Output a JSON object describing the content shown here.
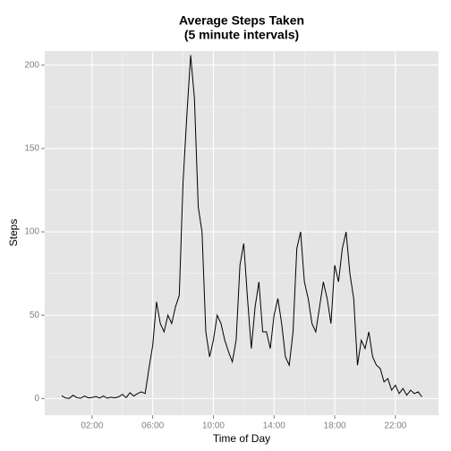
{
  "chart_data": {
    "type": "line",
    "title": "Average Steps Taken",
    "subtitle": "(5 minute intervals)",
    "x_label": "Time of Day",
    "y_label": "Steps",
    "x": [
      0,
      0.25,
      0.5,
      0.75,
      1,
      1.25,
      1.5,
      1.75,
      2,
      2.25,
      2.5,
      2.75,
      3,
      3.25,
      3.5,
      3.75,
      4,
      4.25,
      4.5,
      4.75,
      5,
      5.25,
      5.5,
      5.75,
      6,
      6.25,
      6.5,
      6.75,
      7,
      7.25,
      7.5,
      7.75,
      8,
      8.25,
      8.5,
      8.75,
      9,
      9.25,
      9.5,
      9.75,
      10,
      10.25,
      10.5,
      10.75,
      11,
      11.25,
      11.5,
      11.75,
      12,
      12.25,
      12.5,
      12.75,
      13,
      13.25,
      13.5,
      13.75,
      14,
      14.25,
      14.5,
      14.75,
      15,
      15.25,
      15.5,
      15.75,
      16,
      16.25,
      16.5,
      16.75,
      17,
      17.25,
      17.5,
      17.75,
      18,
      18.25,
      18.5,
      18.75,
      19,
      19.25,
      19.5,
      19.75,
      20,
      20.25,
      20.5,
      20.75,
      21,
      21.25,
      21.5,
      21.75,
      22,
      22.25,
      22.5,
      22.75,
      23,
      23.25,
      23.5,
      23.75
    ],
    "series": [
      {
        "name": "Steps",
        "color": "#000000",
        "values": [
          1.7,
          0.3,
          0.1,
          2,
          0.5,
          0.2,
          1.5,
          0.4,
          0.6,
          1.2,
          0.3,
          1.5,
          0.2,
          0.8,
          0.4,
          1,
          2.5,
          0.5,
          3.5,
          1.5,
          3,
          4,
          3,
          18,
          32,
          58,
          45,
          40,
          50,
          45,
          55,
          62,
          130,
          170,
          206,
          180,
          115,
          100,
          40,
          25,
          35,
          50,
          45,
          35,
          28,
          22,
          35,
          80,
          93,
          60,
          30,
          55,
          70,
          40,
          40,
          30,
          50,
          60,
          45,
          25,
          20,
          40,
          90,
          100,
          70,
          60,
          45,
          40,
          55,
          70,
          60,
          45,
          80,
          70,
          90,
          100,
          75,
          60,
          20,
          35,
          30,
          40,
          25,
          20,
          18,
          10,
          12,
          5,
          8,
          3,
          6,
          2,
          5,
          3,
          4,
          1
        ]
      }
    ],
    "xlim": [
      -1.12,
      24.84
    ],
    "ylim": [
      -10,
      208.5
    ],
    "xticks": [
      {
        "value": 2,
        "label": "02:00"
      },
      {
        "value": 6,
        "label": "06:00"
      },
      {
        "value": 10,
        "label": "10:00"
      },
      {
        "value": 14,
        "label": "14:00"
      },
      {
        "value": 18,
        "label": "18:00"
      },
      {
        "value": 22,
        "label": "22:00"
      }
    ],
    "yticks": [
      0,
      50,
      100,
      150,
      200
    ],
    "grid": true
  }
}
